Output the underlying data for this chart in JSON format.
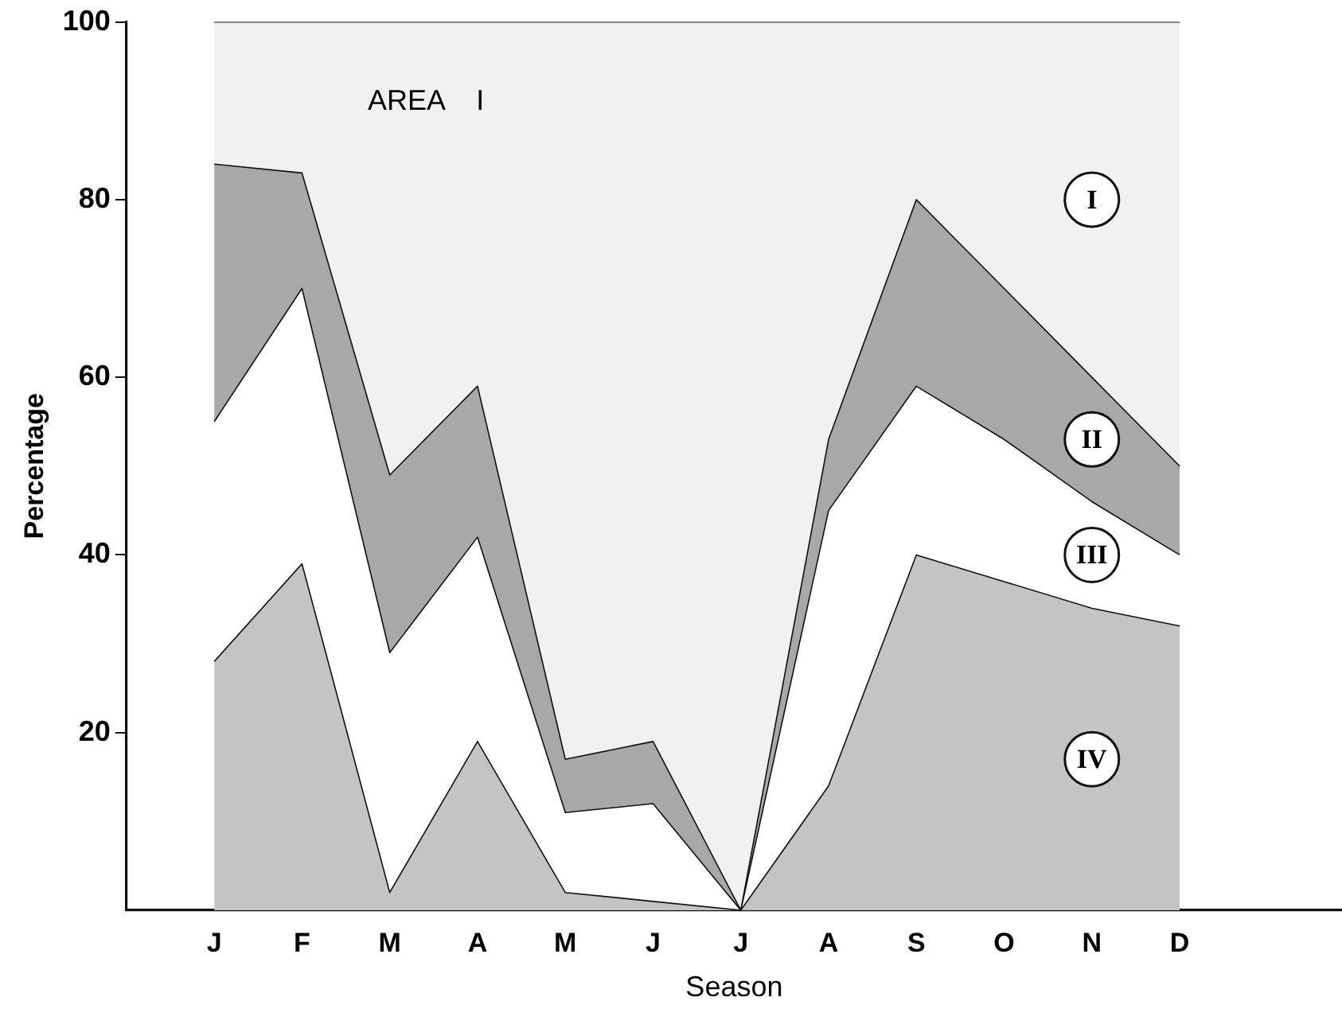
{
  "chart_data": {
    "type": "area",
    "stacked": true,
    "title": "AREA    I",
    "xlabel": "Season",
    "ylabel": "Percentage",
    "categories": [
      "J",
      "F",
      "M",
      "A",
      "M",
      "J",
      "J",
      "A",
      "S",
      "O",
      "N",
      "D"
    ],
    "ylim": [
      0,
      100
    ],
    "yticks": [
      20,
      40,
      60,
      80,
      100
    ],
    "grid": false,
    "legend": false,
    "series": [
      {
        "name": "IV",
        "color": "#c4c4c4",
        "values": [
          28,
          39,
          2,
          19,
          2,
          1,
          0,
          14,
          40,
          37,
          34,
          32
        ]
      },
      {
        "name": "III",
        "color": "#ffffff",
        "values": [
          27,
          31,
          27,
          23,
          9,
          11,
          0,
          31,
          19,
          16,
          12,
          8
        ]
      },
      {
        "name": "II",
        "color": "#a8a8a8",
        "values": [
          29,
          13,
          20,
          17,
          6,
          7,
          0,
          8,
          21,
          17,
          14,
          10
        ]
      },
      {
        "name": "I",
        "color": "#f1f1f1",
        "values": [
          16,
          17,
          51,
          41,
          83,
          81,
          100,
          47,
          20,
          30,
          40,
          50
        ]
      }
    ]
  }
}
